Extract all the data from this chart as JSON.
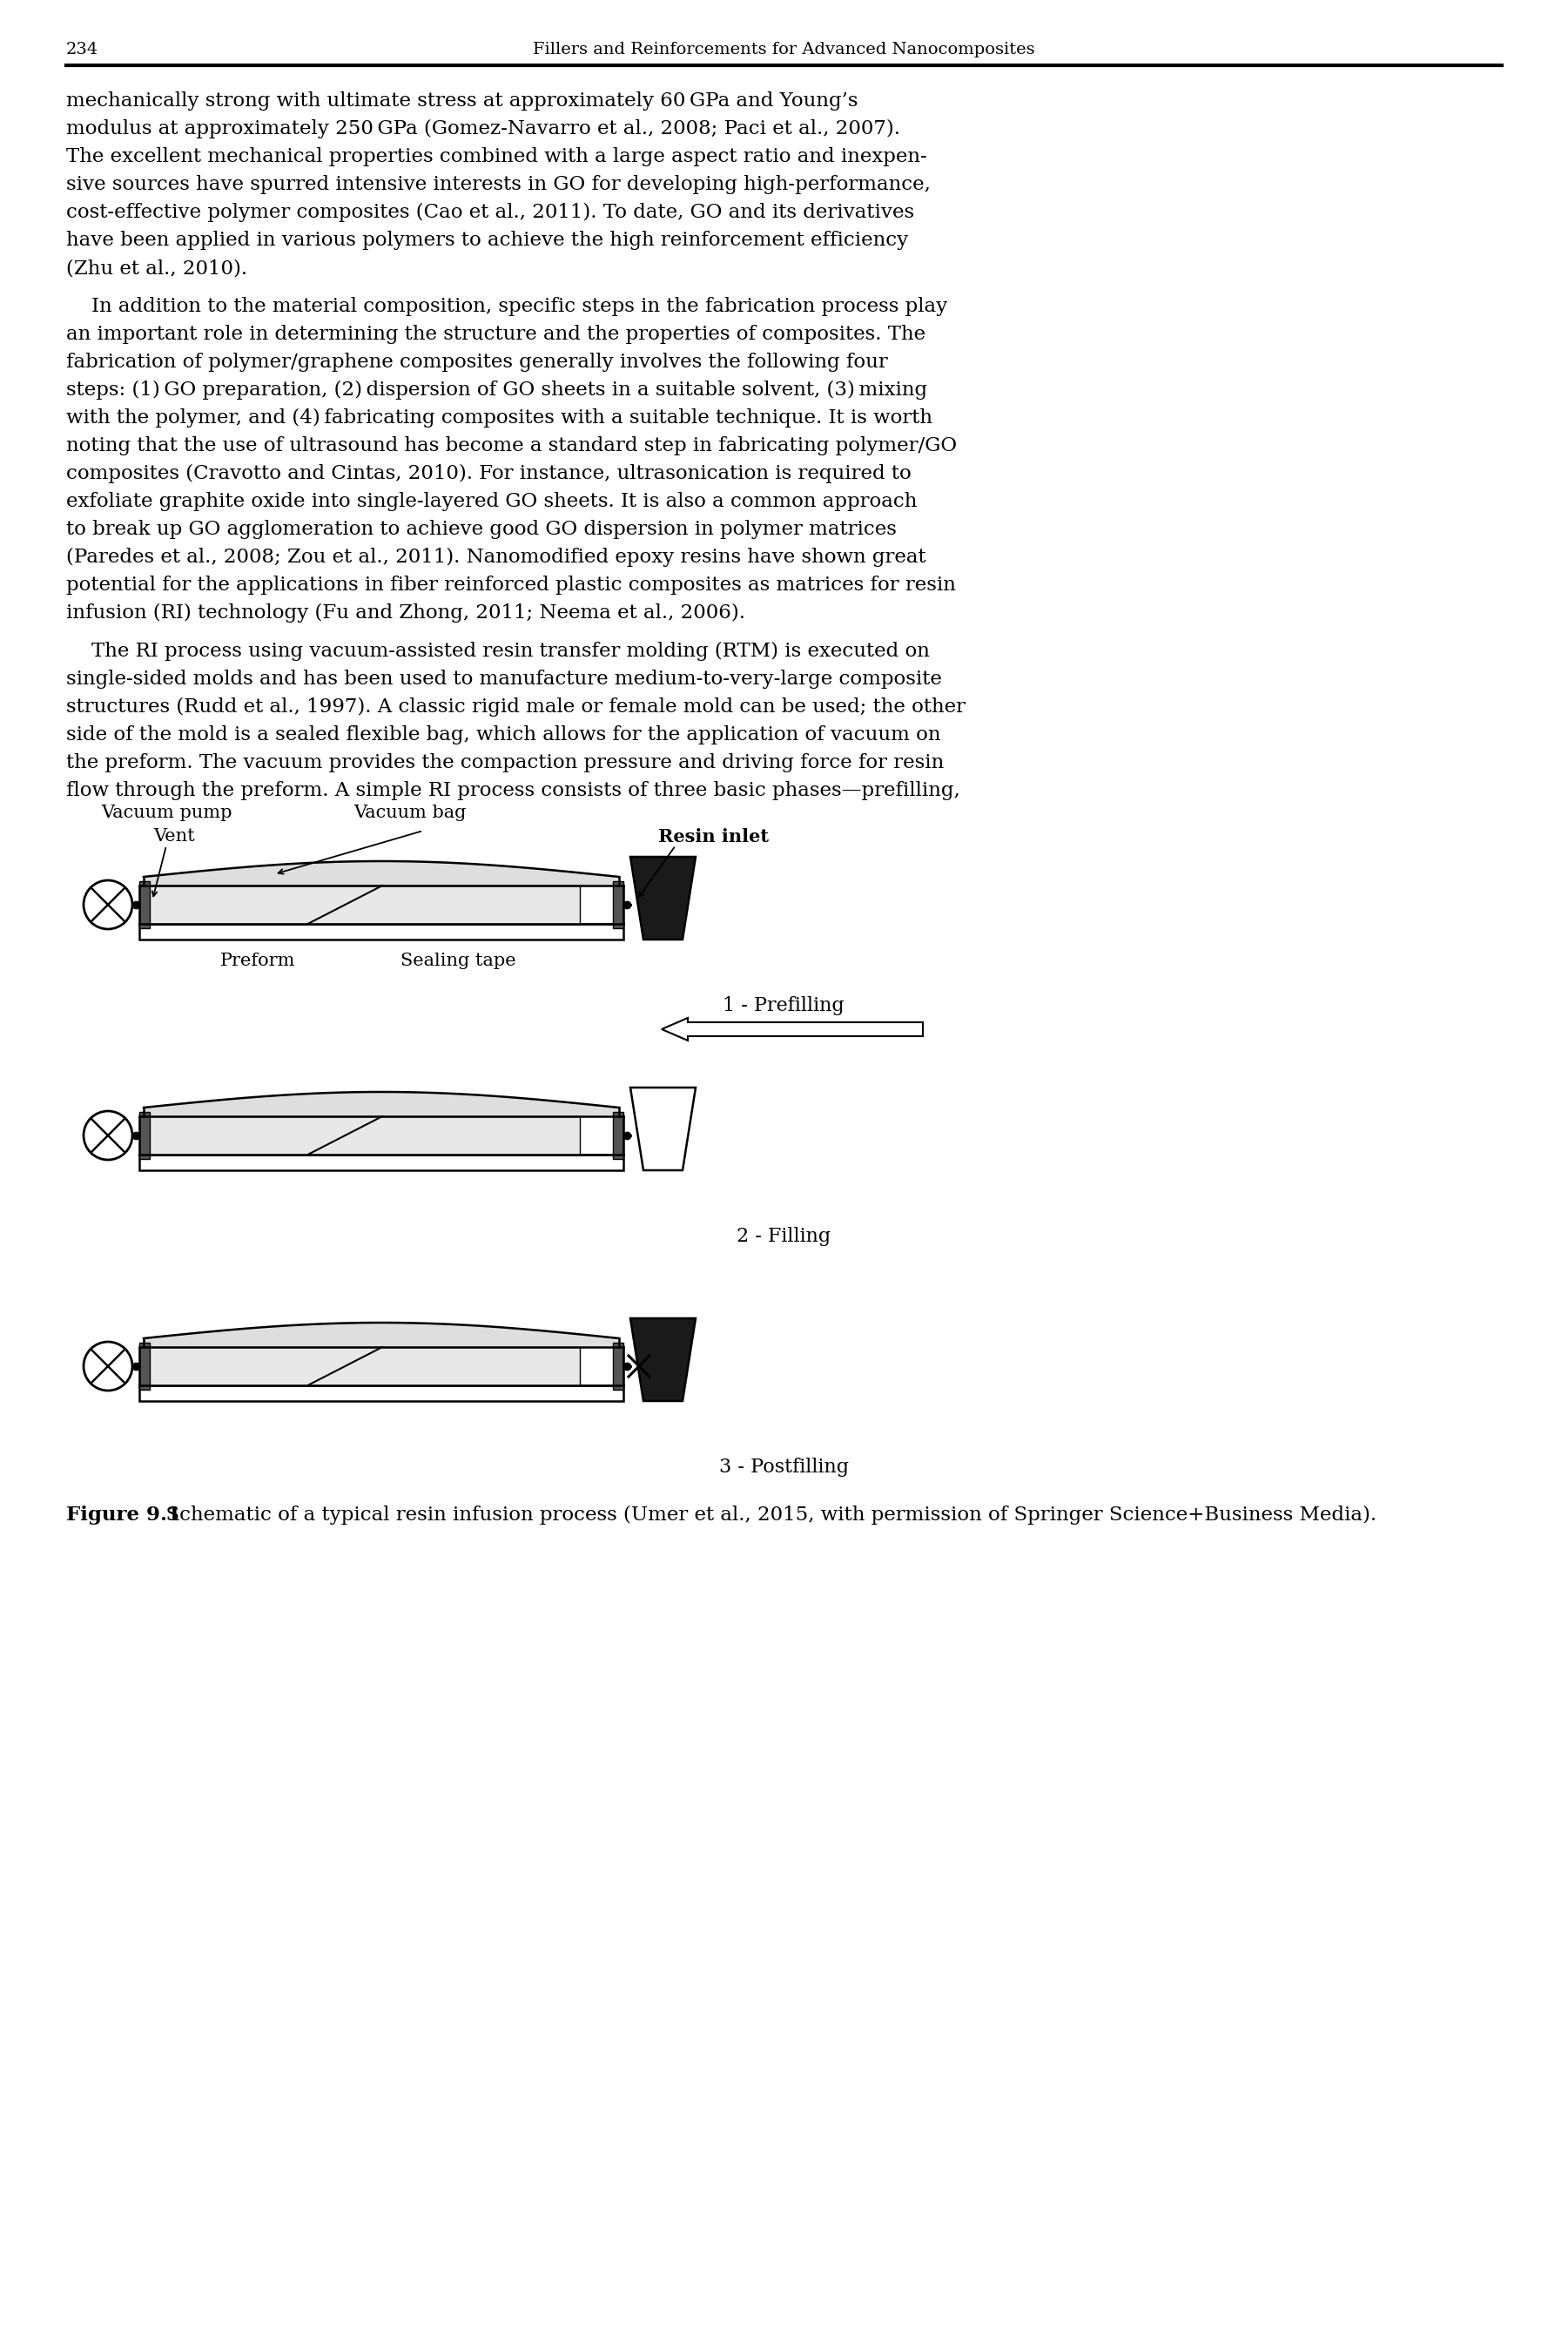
{
  "page_number": "234",
  "header_title": "Fillers and Reinforcements for Advanced Nanocomposites",
  "body_text_para1": "mechanically strong with ultimate stress at approximately 60 GPa and Young’s modulus at approximately 250 GPa (Gomez-Navarro et al., 2008; Paci et al., 2007). The excellent mechanical properties combined with a large aspect ratio and inexpensive sources have spurred intensive interests in GO for developing high-performance, cost-effective polymer composites (Cao et al., 2011). To date, GO and its derivatives have been applied in various polymers to achieve the high reinforcement efficiency (Zhu et al., 2010).",
  "body_text_para2": "    In addition to the material composition, specific steps in the fabrication process play an important role in determining the structure and the properties of composites. The fabrication of polymer/graphene composites generally involves the following four steps: (1) GO preparation, (2) dispersion of GO sheets in a suitable solvent, (3) mixing with the polymer, and (4) fabricating composites with a suitable technique. It is worth noting that the use of ultrasound has become a standard step in fabricating polymer/GO composites (Cravotto and Cintas, 2010). For instance, ultrasonication is required to exfoliate graphite oxide into single-layered GO sheets. It is also a common approach to break up GO agglomeration to achieve good GO dispersion in polymer matrices (Paredes et al., 2008; Zou et al., 2011). Nanomodified epoxy resins have shown great potential for the applications in fiber reinforced plastic composites as matrices for resin infusion (RI) technology (Fu and Zhong, 2011; Neema et al., 2006).",
  "body_text_para3": "    The RI process using vacuum-assisted resin transfer molding (RTM) is executed on single-sided molds and has been used to manufacture medium-to-very-large composite structures (Rudd et al., 1997). A classic rigid male or female mold can be used; the other side of the mold is a sealed flexible bag, which allows for the application of vacuum on the preform. The vacuum provides the compaction pressure and driving force for resin flow through the preform. A simple RI process consists of three basic phases—prefilling,",
  "figure_caption_bold": "Figure 9.1",
  "figure_caption_rest": "  Schematic of a typical resin infusion process (Umer et al., 2015, with permission of Springer Science+Business Media).",
  "diagram_labels": {
    "vacuum_pump": "Vacuum pump",
    "vent": "Vent",
    "vacuum_bag": "Vacuum bag",
    "resin_inlet": "Resin inlet",
    "preform": "Preform",
    "sealing_tape": "Sealing tape",
    "phase1": "1 - Prefilling",
    "phase2": "2 - Filling",
    "phase3": "3 - Postfilling"
  },
  "bg_color": "#ffffff",
  "text_color": "#000000",
  "line_color": "#000000"
}
